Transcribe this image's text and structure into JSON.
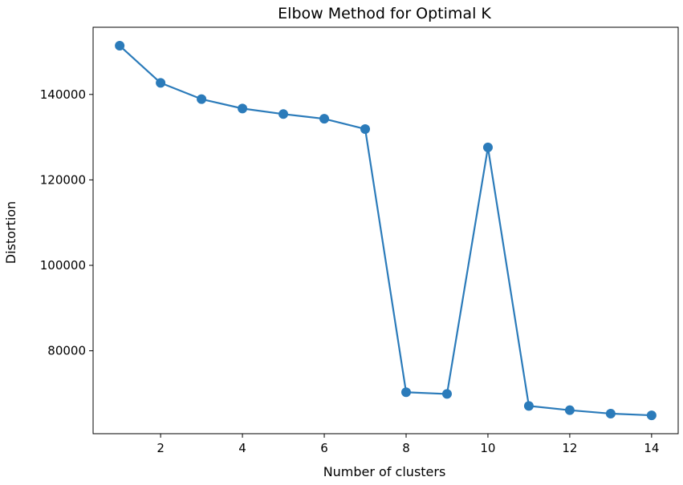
{
  "chart_data": {
    "type": "line",
    "title": "Elbow Method for Optimal K",
    "xlabel": "Number of clusters",
    "ylabel": "Distortion",
    "x": [
      1,
      2,
      3,
      4,
      5,
      6,
      7,
      8,
      9,
      10,
      11,
      12,
      13,
      14
    ],
    "series": [
      {
        "values": [
          151400,
          142700,
          138900,
          136700,
          135400,
          134300,
          131900,
          70300,
          69900,
          127600,
          67100,
          66100,
          65300,
          64900
        ]
      }
    ],
    "xticks": [
      2,
      4,
      6,
      8,
      10,
      12,
      14
    ],
    "xtick_labels": [
      "2",
      "4",
      "6",
      "8",
      "10",
      "12",
      "14"
    ],
    "yticks": [
      80000,
      100000,
      120000,
      140000
    ],
    "ytick_labels": [
      "80000",
      "100000",
      "120000",
      "140000"
    ],
    "xlim": [
      0.35,
      14.65
    ],
    "ylim": [
      60600,
      155720
    ],
    "grid": false,
    "line_color": "#2b7bba",
    "marker": "circle"
  }
}
